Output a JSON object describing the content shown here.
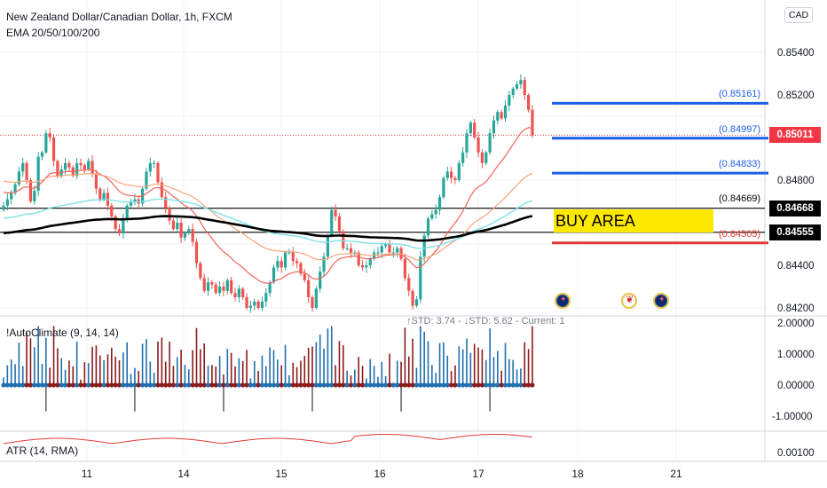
{
  "header": {
    "symbol_line": "New Zealand Dollar/Canadian Dollar, 1h, FXCM",
    "ema_line": "EMA 20/50/100/200",
    "autoclimate_line": "!AutoClimate (9, 14, 14)",
    "atr_line": "ATR (14, RMA)",
    "std_line": "↑STD: 3.74 - ↓STD: 5.62 - Current: 1",
    "currency": "CAD"
  },
  "chart_data": [
    {
      "type": "candlestick",
      "title": "New Zealand Dollar/Canadian Dollar, 1h, FXCM",
      "x_ticks": [
        "11",
        "14",
        "15",
        "16",
        "17",
        "18",
        "21"
      ],
      "y_ticks": [
        "0.85400",
        "0.85200",
        "0.84800",
        "0.84400",
        "0.84200"
      ],
      "y_range": [
        0.8418,
        0.8562
      ],
      "current_price": "0.85011",
      "levels": [
        {
          "label": "(0.85161)",
          "value": 0.85161,
          "color": "#1e5fe6"
        },
        {
          "label": "(0.84997)",
          "value": 0.84997,
          "color": "#1e5fe6"
        },
        {
          "label": "(0.84833)",
          "value": 0.84833,
          "color": "#1e5fe6"
        },
        {
          "label": "(0.84669)",
          "value": 0.84669,
          "color": "#000000"
        },
        {
          "label": "(0.84505)",
          "value": 0.84505,
          "color": "#e53935"
        }
      ],
      "price_tags": [
        {
          "label": "0.85011",
          "value": 0.85011,
          "color": "#f23645"
        },
        {
          "label": "0.84668",
          "value": 0.84668,
          "color": "#000000"
        },
        {
          "label": "0.84555",
          "value": 0.84555,
          "color": "#000000"
        }
      ],
      "buy_area": {
        "label": "BUY AREA",
        "top": 0.84668,
        "bottom": 0.84555
      },
      "close": [
        0.8468,
        0.8471,
        0.8474,
        0.8478,
        0.8484,
        0.8488,
        0.848,
        0.847,
        0.8475,
        0.8491,
        0.8493,
        0.8502,
        0.85,
        0.8489,
        0.8482,
        0.8485,
        0.8488,
        0.8486,
        0.8482,
        0.8488,
        0.8487,
        0.8485,
        0.8489,
        0.8483,
        0.8476,
        0.8471,
        0.8474,
        0.8468,
        0.8463,
        0.8457,
        0.8455,
        0.8462,
        0.8468,
        0.847,
        0.8471,
        0.8469,
        0.8476,
        0.8484,
        0.8488,
        0.8488,
        0.8479,
        0.8472,
        0.8467,
        0.8461,
        0.8457,
        0.846,
        0.8453,
        0.8455,
        0.8457,
        0.8451,
        0.8441,
        0.8434,
        0.8428,
        0.8432,
        0.8431,
        0.8427,
        0.843,
        0.8428,
        0.8433,
        0.8427,
        0.8425,
        0.8429,
        0.8425,
        0.842,
        0.8421,
        0.8423,
        0.842,
        0.8423,
        0.8427,
        0.8432,
        0.8439,
        0.8442,
        0.8439,
        0.8446,
        0.8446,
        0.8442,
        0.8441,
        0.8436,
        0.8433,
        0.8425,
        0.842,
        0.8429,
        0.8437,
        0.8444,
        0.8454,
        0.8466,
        0.8463,
        0.8456,
        0.8448,
        0.8448,
        0.8446,
        0.8446,
        0.844,
        0.8439,
        0.844,
        0.8443,
        0.8446,
        0.8446,
        0.8449,
        0.845,
        0.8446,
        0.8446,
        0.8448,
        0.8443,
        0.8434,
        0.8428,
        0.8421,
        0.8424,
        0.8444,
        0.8454,
        0.8462,
        0.8464,
        0.8466,
        0.8472,
        0.8481,
        0.8484,
        0.8481,
        0.848,
        0.8488,
        0.8493,
        0.8502,
        0.8507,
        0.85,
        0.8493,
        0.8488,
        0.8493,
        0.8502,
        0.8508,
        0.8512,
        0.8509,
        0.8515,
        0.852,
        0.8523,
        0.8525,
        0.8527,
        0.852,
        0.8513,
        0.8501
      ]
    },
    {
      "type": "bar",
      "title": "!AutoClimate (9, 14, 14)",
      "y_ticks": [
        "2.00000",
        "1.00000",
        "0.00000",
        "-1.00000"
      ],
      "y_range": [
        -1.3,
        2.0
      ]
    },
    {
      "type": "line",
      "title": "ATR (14, RMA)",
      "y_ticks": [
        "0.00100"
      ]
    }
  ],
  "colors": {
    "up": "#26a69a",
    "down": "#ef5350",
    "ema20": "#f0645a",
    "ema50": "#f7a57c",
    "ema100": "#7fe1e8",
    "ema200": "#000000",
    "climate_up": "#1f6fae",
    "climate_down": "#8b1a1a",
    "atr": "#e53935"
  },
  "icons": [
    "nz-flag-icon",
    "ca-flag-icon",
    "nz-flag-icon"
  ]
}
